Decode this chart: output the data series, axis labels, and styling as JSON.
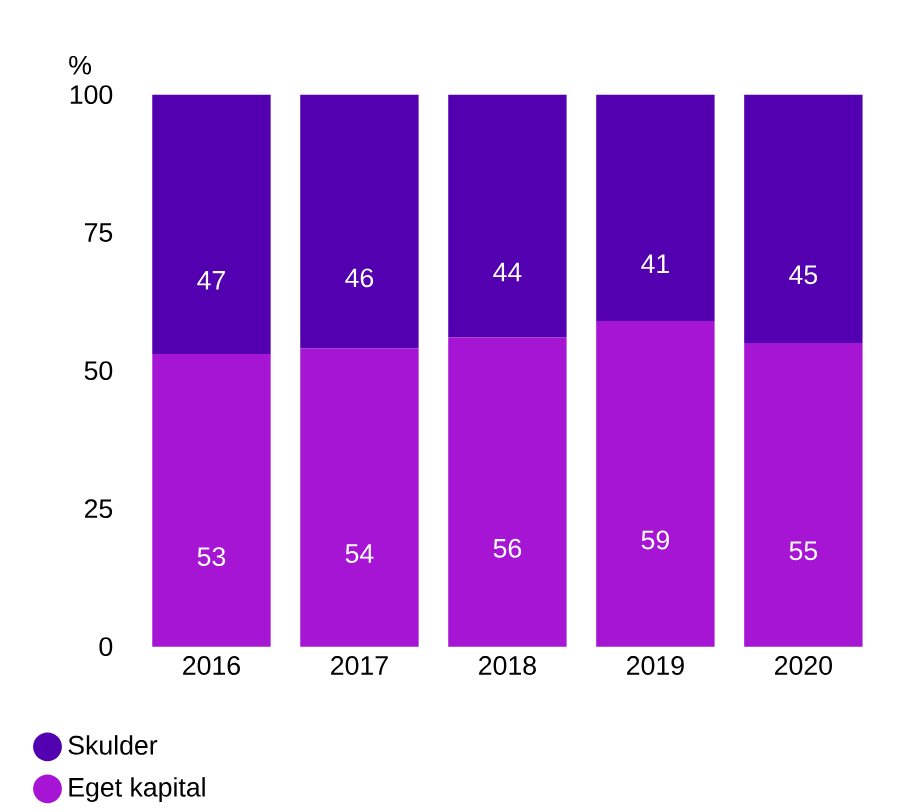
{
  "chart_data": {
    "type": "bar",
    "stacked": true,
    "ylabel": "%",
    "categories": [
      "2016",
      "2017",
      "2018",
      "2019",
      "2020"
    ],
    "series": [
      {
        "name": "Eget kapital",
        "color": "#a615d4",
        "values": [
          53,
          54,
          56,
          59,
          55
        ]
      },
      {
        "name": "Skulder",
        "color": "#5200b0",
        "values": [
          47,
          46,
          44,
          41,
          45
        ]
      }
    ],
    "ylim": [
      0,
      100
    ],
    "yticks": [
      0,
      25,
      50,
      75,
      100
    ],
    "grid": false,
    "legend": "bottom",
    "data_labels": true
  }
}
